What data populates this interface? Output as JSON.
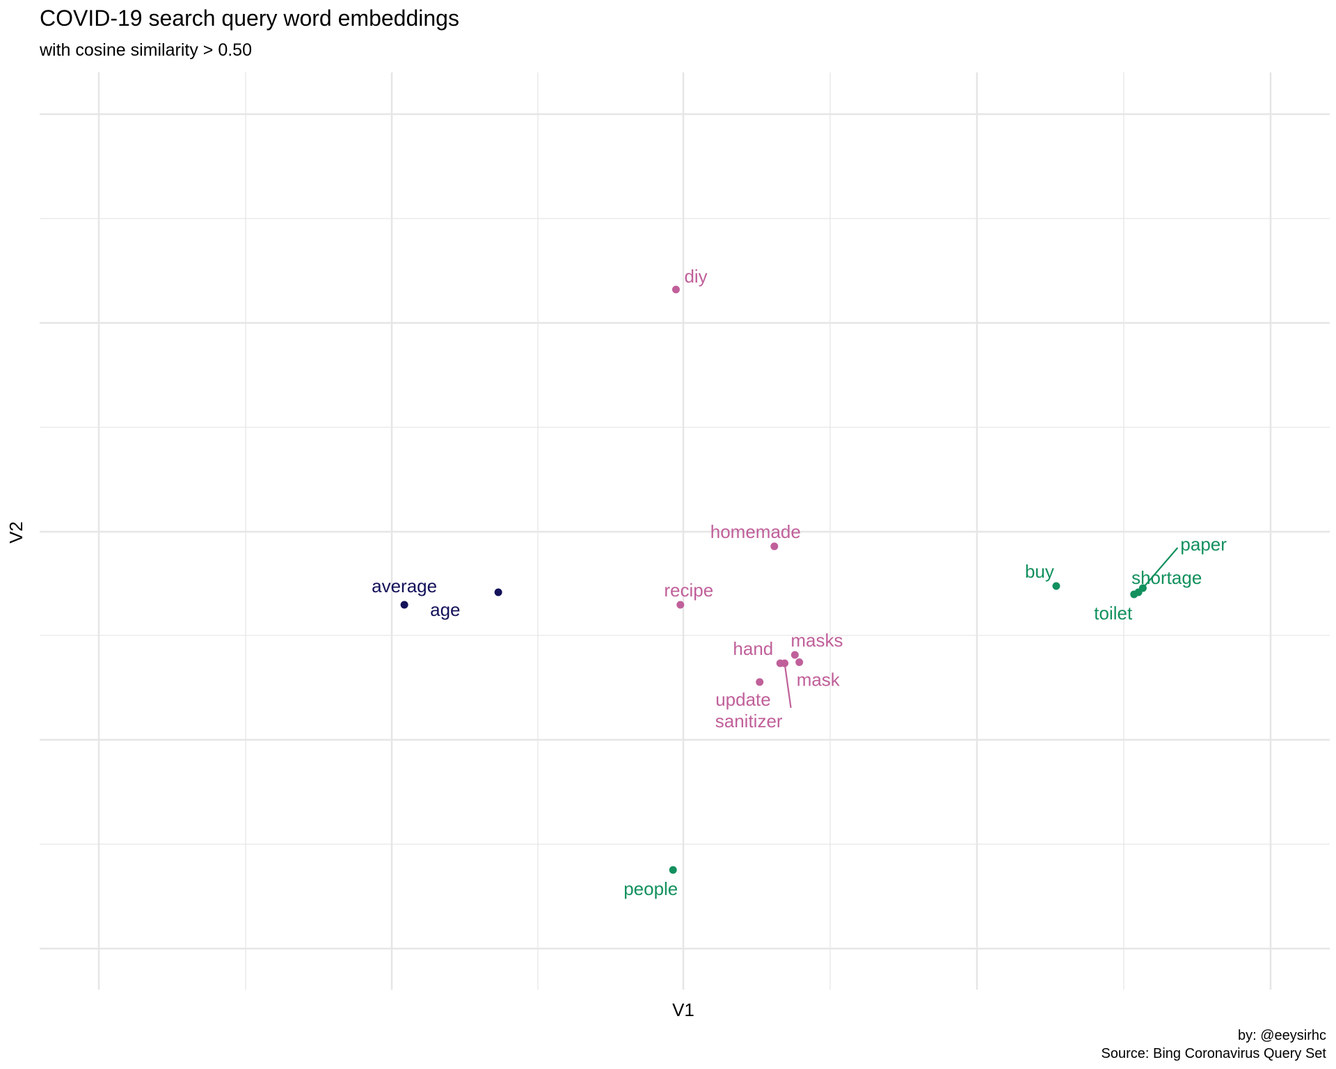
{
  "title": "COVID-19 search query word embeddings",
  "subtitle": "with cosine similarity > 0.50",
  "caption": {
    "line1": "by: @eeysirhc",
    "line2": "Source: Bing Coronavirus Query Set"
  },
  "chart_data": {
    "type": "scatter",
    "xlabel": "V1",
    "ylabel": "V2",
    "grid": true,
    "legend": "none",
    "colors": {
      "navy": "#14125a",
      "pink": "#c0609a",
      "green": "#12905e",
      "grid": "#e6e6e6"
    },
    "points": [
      {
        "label": "average",
        "x": -0.95,
        "y": -0.35,
        "group": "navy"
      },
      {
        "label": "age",
        "x": -0.63,
        "y": -0.29,
        "group": "navy"
      },
      {
        "label": "diy",
        "x": -0.025,
        "y": 1.16,
        "group": "pink"
      },
      {
        "label": "homemade",
        "x": 0.31,
        "y": -0.07,
        "group": "pink"
      },
      {
        "label": "recipe",
        "x": -0.01,
        "y": -0.35,
        "group": "pink"
      },
      {
        "label": "hand",
        "x": 0.33,
        "y": -0.63,
        "group": "pink"
      },
      {
        "label": "masks",
        "x": 0.38,
        "y": -0.59,
        "group": "pink"
      },
      {
        "label": "mask",
        "x": 0.395,
        "y": -0.625,
        "group": "pink"
      },
      {
        "label": "sanitizer",
        "x": 0.345,
        "y": -0.63,
        "group": "pink"
      },
      {
        "label": "update",
        "x": 0.26,
        "y": -0.72,
        "group": "pink"
      },
      {
        "label": "people",
        "x": -0.035,
        "y": -1.62,
        "group": "green"
      },
      {
        "label": "buy",
        "x": 1.27,
        "y": -0.26,
        "group": "green"
      },
      {
        "label": "paper",
        "x": 1.565,
        "y": -0.27,
        "group": "green"
      },
      {
        "label": "shortage",
        "x": 1.55,
        "y": -0.29,
        "group": "green"
      },
      {
        "label": "toilet",
        "x": 1.535,
        "y": -0.3,
        "group": "green"
      }
    ]
  }
}
